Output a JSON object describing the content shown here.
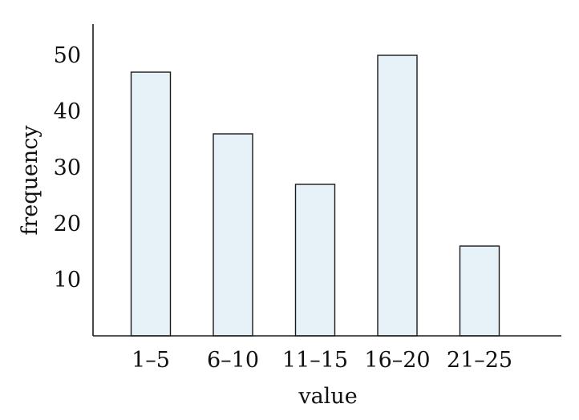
{
  "chart_data": {
    "type": "bar",
    "categories": [
      "1–5",
      "6–10",
      "11–15",
      "16–20",
      "21–25"
    ],
    "values": [
      47,
      36,
      27,
      50,
      16
    ],
    "xlabel": "value",
    "ylabel": "frequency",
    "ylim": [
      0,
      55
    ],
    "yticks": [
      10,
      20,
      30,
      40,
      50
    ],
    "grid": false,
    "legend": "none",
    "colors": {
      "bar_fill": "#e6f2f8",
      "bar_stroke": "#1a1a1a",
      "axis": "#1a1a1a"
    }
  }
}
